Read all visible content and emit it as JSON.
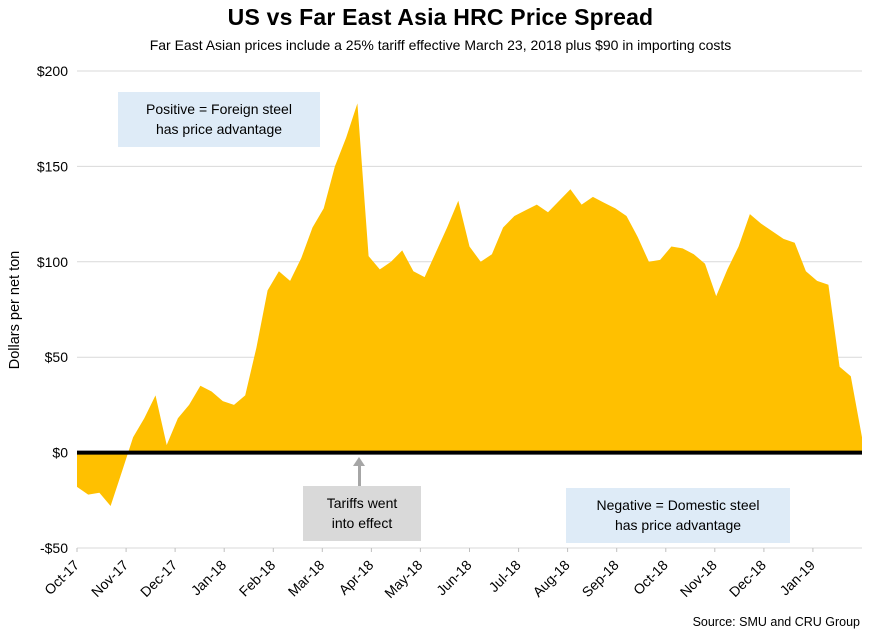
{
  "page": {
    "source": "Source: SMU and CRU Group"
  },
  "chart_data": {
    "type": "area",
    "title": "US vs Far East Asia HRC Price Spread",
    "subtitle": "Far East Asian prices include a 25% tariff effective March 23, 2018 plus $90 in importing costs",
    "ylabel": "Dollars per net ton",
    "xlabel": "",
    "ylim": [
      -50,
      200
    ],
    "ytick_values": [
      200,
      150,
      100,
      50,
      0,
      -50
    ],
    "ytick_labels": [
      "$200",
      "$150",
      "$100",
      "$50",
      "$0",
      "-$50"
    ],
    "x_tick_labels": [
      "Oct-17",
      "Nov-17",
      "Dec-17",
      "Jan-18",
      "Feb-18",
      "Mar-18",
      "Apr-18",
      "May-18",
      "Jun-18",
      "Jul-18",
      "Aug-18",
      "Sep-18",
      "Oct-18",
      "Nov-18",
      "Dec-18",
      "Jan-19"
    ],
    "x_total_months": 16,
    "values": [
      -18,
      -22,
      -21,
      -28,
      -10,
      8,
      18,
      30,
      4,
      18,
      25,
      35,
      32,
      27,
      25,
      30,
      55,
      85,
      95,
      90,
      102,
      118,
      128,
      150,
      165,
      183,
      103,
      96,
      100,
      106,
      95,
      92,
      105,
      118,
      132,
      108,
      100,
      104,
      118,
      124,
      127,
      130,
      126,
      132,
      138,
      130,
      134,
      131,
      128,
      124,
      113,
      100,
      101,
      108,
      107,
      104,
      99,
      82,
      96,
      108,
      125,
      120,
      116,
      112,
      110,
      95,
      90,
      88,
      45,
      40,
      8
    ],
    "fill_color": "#FFC000",
    "zero_line_color": "#000000",
    "grid_color": "#D9D9D9",
    "tick_color": "#BFBFBF",
    "grid": true,
    "legend": "none",
    "annotations": [
      {
        "id": "positive",
        "text_lines": [
          "Positive = Foreign steel",
          "has price advantage"
        ],
        "bg": "#DEEBF7"
      },
      {
        "id": "tariff",
        "text_lines": [
          "Tariffs went",
          "into effect"
        ],
        "bg": "#D9D9D9",
        "arrow": "points up to zero line at late March 2018"
      },
      {
        "id": "negative",
        "text_lines": [
          "Negative = Domestic steel",
          "has price advantage"
        ],
        "bg": "#DEEBF7"
      }
    ]
  }
}
